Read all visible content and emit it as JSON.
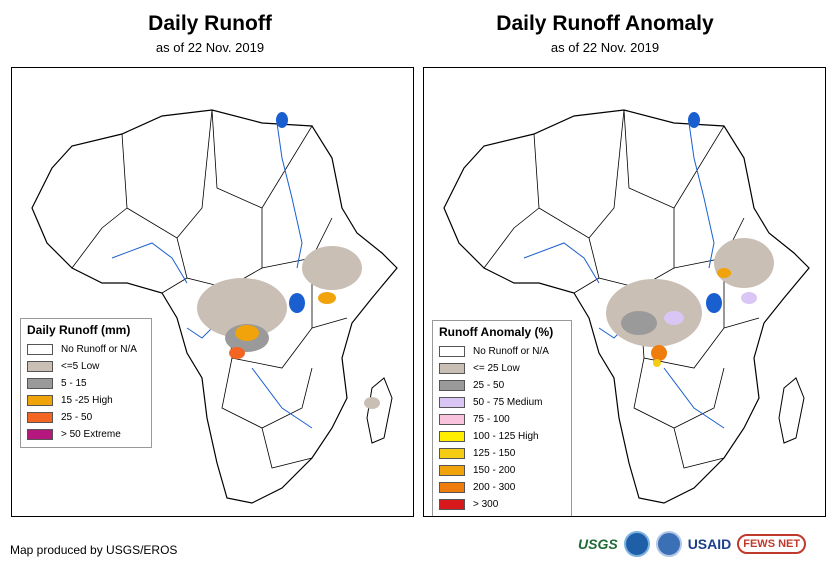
{
  "left_map": {
    "title": "Daily Runoff",
    "subtitle": "as of 22 Nov. 2019",
    "legend_title": "Daily Runoff (mm)",
    "legend": [
      {
        "label": "No Runoff or N/A",
        "color": "#ffffff"
      },
      {
        "label": "<=5 Low",
        "color": "#c9bfb4"
      },
      {
        "label": "5 - 15",
        "color": "#9a9a9a"
      },
      {
        "label": "15 -25 High",
        "color": "#f0a30a"
      },
      {
        "label": "25 - 50",
        "color": "#f26522"
      },
      {
        "label": "> 50 Extreme",
        "color": "#b5177f"
      }
    ]
  },
  "right_map": {
    "title": "Daily Runoff Anomaly",
    "subtitle": "as of 22 Nov. 2019",
    "legend_title": "Runoff Anomaly (%)",
    "legend": [
      {
        "label": "No Runoff or N/A",
        "color": "#ffffff"
      },
      {
        "label": "<= 25 Low",
        "color": "#c9bfb4"
      },
      {
        "label": "25 - 50",
        "color": "#9a9a9a"
      },
      {
        "label": "50 - 75 Medium",
        "color": "#d9c6f5"
      },
      {
        "label": "75 - 100",
        "color": "#f9c3dd"
      },
      {
        "label": "100 - 125 High",
        "color": "#ffee00"
      },
      {
        "label": "125 - 150",
        "color": "#f5cc14"
      },
      {
        "label": "150 - 200",
        "color": "#f0a30a"
      },
      {
        "label": "200 - 300",
        "color": "#ee7d0e"
      },
      {
        "label": "> 300",
        "color": "#d7191c"
      }
    ]
  },
  "credit": "Map produced by USGS/EROS",
  "logos": {
    "usgs": "USGS",
    "usaid": "USAID",
    "fewsnet": "FEWS NET"
  }
}
